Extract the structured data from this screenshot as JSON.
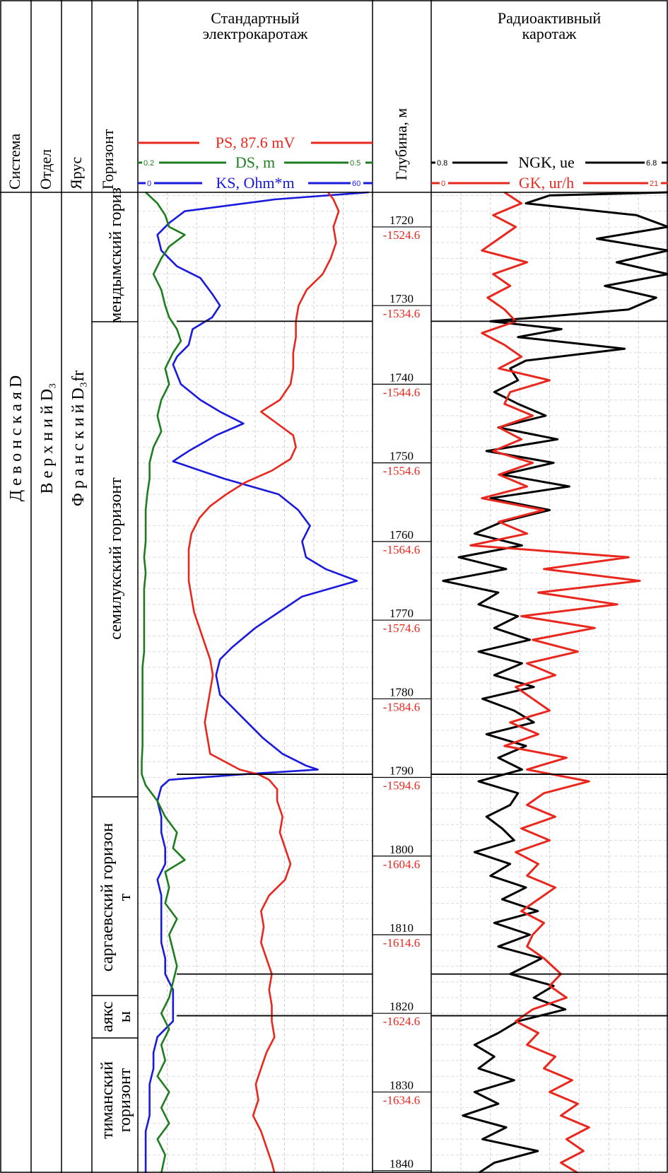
{
  "header": {
    "col_system": "Система",
    "col_department": "Отдел",
    "col_stage": "Ярус",
    "col_horizon": "Горизонт",
    "depth_label": "Глубина, м",
    "electro_title_1": "Стандартный",
    "electro_title_2": "электрокаротаж",
    "radio_title_1": "Радиоактивный",
    "radio_title_2": "каротаж"
  },
  "curves": {
    "ps": {
      "label": "PS, 87.6 mV",
      "color": "#e8281e"
    },
    "ds": {
      "label": "DS, m",
      "color": "#1e7d1e",
      "min": "0.2",
      "max": "0.5"
    },
    "ks": {
      "label": "KS, Ohm*m",
      "color": "#1a1adc",
      "min": "0",
      "max": "60"
    },
    "ngk": {
      "label": "NGK, ue",
      "color": "#000000",
      "min": "0.8",
      "max": "6.8"
    },
    "gk": {
      "label": "GK, ur/h",
      "color": "#e8281e",
      "min": "0",
      "max": "21"
    }
  },
  "stratigraphy": {
    "system": "Д е в о н с к а я  D",
    "department": "В е р х н и й  D₃",
    "stage": "Ф р а н с к и й  D₃fr",
    "horizons": [
      {
        "line1": "мендымский гориз",
        "line2": ""
      },
      {
        "line1": "семилукский горизонт",
        "line2": ""
      },
      {
        "line1": "саргаевский горизон",
        "line2": "т"
      },
      {
        "line1": "аякс",
        "line2": "ы"
      },
      {
        "line1": "тиманский",
        "line2": "горизонт"
      }
    ]
  },
  "depth_marks": [
    {
      "depth": "1720",
      "abs": "-1524.6"
    },
    {
      "depth": "1730",
      "abs": "-1534.6"
    },
    {
      "depth": "1740",
      "abs": "-1544.6"
    },
    {
      "depth": "1750",
      "abs": "-1554.6"
    },
    {
      "depth": "1760",
      "abs": "-1564.6"
    },
    {
      "depth": "1770",
      "abs": "-1574.6"
    },
    {
      "depth": "1780",
      "abs": "-1584.6"
    },
    {
      "depth": "1790",
      "abs": "-1594.6"
    },
    {
      "depth": "1800",
      "abs": "-1604.6"
    },
    {
      "depth": "1810",
      "abs": "-1614.6"
    },
    {
      "depth": "1820",
      "abs": "-1624.6"
    },
    {
      "depth": "1830",
      "abs": "-1634.6"
    },
    {
      "depth": "1840",
      "abs": ""
    }
  ],
  "chart_data": {
    "type": "line",
    "y_axis": "depth, m",
    "ylim": [
      1715.6,
      1840.3
    ],
    "boundaries": [
      1732.0,
      1789.6,
      1815.0,
      1820.3
    ],
    "series": [
      {
        "name": "KS, Ohm*m",
        "color": "#1a1adc",
        "xlim": [
          0,
          60
        ],
        "depth": [
          1715.6,
          1716.5,
          1718,
          1719.5,
          1721,
          1723,
          1725,
          1726.5,
          1728.5,
          1730,
          1731.5,
          1733,
          1735,
          1736.5,
          1737.5,
          1740,
          1742,
          1743.5,
          1745,
          1746.5,
          1748.5,
          1749.8,
          1752,
          1754,
          1756,
          1758,
          1760,
          1762,
          1763.5,
          1765,
          1767,
          1769,
          1771,
          1773.5,
          1775,
          1777,
          1779.5,
          1781.5,
          1783,
          1785,
          1787,
          1788.5,
          1789,
          1789.6,
          1790.3,
          1791.2,
          1793,
          1795,
          1797,
          1799,
          1801,
          1803,
          1805,
          1807,
          1809,
          1811,
          1813,
          1815,
          1817,
          1819,
          1821,
          1823,
          1825,
          1827,
          1829,
          1831,
          1833,
          1835,
          1837,
          1839,
          1840.3
        ],
        "values": [
          59,
          35,
          12,
          8,
          5,
          6,
          10,
          16,
          19,
          21,
          19,
          14,
          13,
          10,
          9,
          11,
          16,
          21,
          27,
          20,
          13,
          9,
          22,
          36,
          41,
          44,
          42,
          43,
          48,
          56,
          42,
          36,
          30,
          24,
          21,
          20,
          21,
          25,
          28,
          32,
          37,
          43,
          46,
          27,
          8,
          6,
          5,
          6,
          6,
          7,
          7,
          5,
          6,
          6,
          6,
          6,
          7,
          7,
          9,
          9,
          9,
          5,
          4,
          4,
          3,
          3,
          3,
          2,
          2,
          2,
          2
        ]
      },
      {
        "name": "PS, 87.6 mV",
        "color": "#e8281e",
        "xlim": [
          0,
          87.6
        ],
        "depth": [
          1715.6,
          1716.5,
          1718,
          1720,
          1722,
          1724,
          1726,
          1728,
          1730,
          1732,
          1734,
          1736,
          1738,
          1740,
          1742,
          1743.5,
          1745,
          1746.5,
          1748,
          1749.5,
          1751,
          1752.5,
          1754,
          1755.5,
          1757,
          1759,
          1761,
          1763,
          1765,
          1767,
          1769,
          1771,
          1773,
          1775,
          1777,
          1779,
          1781,
          1783,
          1785,
          1787,
          1789,
          1789.6,
          1790.3,
          1791.5,
          1793,
          1795,
          1797,
          1799,
          1801,
          1803,
          1805,
          1807,
          1809,
          1811,
          1813,
          1815,
          1817,
          1819,
          1821,
          1823,
          1825,
          1827,
          1829,
          1831,
          1833,
          1835,
          1837,
          1839,
          1840.3
        ],
        "values": [
          71,
          73,
          75,
          73,
          74,
          72,
          69,
          63,
          60,
          59,
          59,
          58,
          58,
          57,
          53,
          46,
          52,
          58,
          59,
          57,
          50,
          40,
          33,
          27,
          23,
          20,
          19,
          19,
          19,
          20,
          21,
          23,
          25,
          27,
          28,
          27,
          26,
          25,
          26,
          27,
          38,
          45,
          49,
          52,
          52,
          54,
          53,
          55,
          57,
          55,
          49,
          46,
          47,
          46,
          48,
          50,
          49,
          50,
          50,
          51,
          48,
          46,
          44,
          45,
          43,
          46,
          48,
          50,
          51
        ]
      },
      {
        "name": "DS, m",
        "color": "#1e7d1e",
        "xlim": [
          0.2,
          0.5
        ],
        "depth": [
          1715.6,
          1717,
          1718.5,
          1720,
          1721,
          1722.5,
          1724,
          1726,
          1728,
          1730,
          1731.5,
          1733,
          1734.5,
          1736,
          1738,
          1740,
          1742,
          1744,
          1746,
          1748,
          1750,
          1752,
          1754,
          1756,
          1758,
          1760,
          1762,
          1764,
          1766,
          1768,
          1770,
          1772,
          1774,
          1776,
          1778,
          1780,
          1782,
          1784,
          1786,
          1788,
          1789.6,
          1791,
          1793,
          1795,
          1797,
          1799,
          1800.5,
          1802,
          1804,
          1806,
          1808,
          1810,
          1812,
          1814,
          1816,
          1818,
          1820,
          1822,
          1824,
          1826,
          1828,
          1830,
          1832,
          1834,
          1836,
          1838,
          1840.3
        ],
        "values": [
          0.21,
          0.225,
          0.235,
          0.24,
          0.26,
          0.24,
          0.23,
          0.22,
          0.23,
          0.235,
          0.24,
          0.25,
          0.255,
          0.245,
          0.235,
          0.24,
          0.23,
          0.225,
          0.23,
          0.22,
          0.215,
          0.215,
          0.212,
          0.21,
          0.21,
          0.21,
          0.208,
          0.21,
          0.208,
          0.208,
          0.208,
          0.208,
          0.208,
          0.206,
          0.206,
          0.206,
          0.206,
          0.206,
          0.206,
          0.205,
          0.205,
          0.21,
          0.225,
          0.235,
          0.25,
          0.245,
          0.26,
          0.235,
          0.24,
          0.235,
          0.25,
          0.24,
          0.245,
          0.25,
          0.245,
          0.24,
          0.23,
          0.24,
          0.23,
          0.235,
          0.225,
          0.24,
          0.23,
          0.24,
          0.225,
          0.235,
          0.23
        ]
      },
      {
        "name": "NGK, ue",
        "color": "#000000",
        "xlim": [
          0.8,
          6.8
        ],
        "depth": [
          1715.6,
          1716,
          1717,
          1718.5,
          1720,
          1721.5,
          1723,
          1724.5,
          1726,
          1727.5,
          1729,
          1730.5,
          1732,
          1733,
          1734,
          1735.5,
          1737,
          1738,
          1739.5,
          1741,
          1742.5,
          1744,
          1745.5,
          1747,
          1748.5,
          1750,
          1751.5,
          1753,
          1754.5,
          1756,
          1757.5,
          1759,
          1760.5,
          1762,
          1763.5,
          1765,
          1766.5,
          1768,
          1769.5,
          1771,
          1772.5,
          1774,
          1775.5,
          1777,
          1778.5,
          1780,
          1781.5,
          1783,
          1784.5,
          1786,
          1787.5,
          1789,
          1790.5,
          1792,
          1793.5,
          1795,
          1796.5,
          1798,
          1799.5,
          1801,
          1802.5,
          1804,
          1805.5,
          1807,
          1808.5,
          1810,
          1811.5,
          1813,
          1815,
          1816.5,
          1818,
          1819.5,
          1821,
          1822.5,
          1824,
          1825.5,
          1827,
          1828.5,
          1830,
          1831.5,
          1833,
          1834.5,
          1836,
          1837.5,
          1839,
          1840.3
        ],
        "values": [
          6.8,
          3.8,
          3.2,
          6.0,
          6.8,
          5.0,
          6.8,
          5.5,
          6.8,
          5.2,
          6.5,
          5.8,
          2.3,
          4.1,
          3.0,
          5.7,
          3.2,
          2.8,
          3.0,
          2.4,
          3.0,
          3.7,
          2.5,
          4.0,
          2.2,
          3.9,
          2.6,
          4.3,
          2.3,
          3.8,
          2.6,
          1.9,
          3.1,
          1.5,
          2.7,
          1.1,
          2.5,
          2.0,
          3.0,
          2.4,
          3.3,
          2.0,
          3.1,
          2.4,
          3.4,
          2.1,
          2.9,
          3.4,
          2.2,
          3.2,
          2.5,
          3.1,
          2.0,
          3.0,
          2.8,
          2.2,
          2.6,
          2.9,
          1.9,
          2.8,
          2.3,
          3.2,
          2.6,
          3.5,
          2.4,
          3.3,
          2.5,
          3.6,
          2.8,
          3.9,
          3.4,
          4.2,
          3.0,
          2.5,
          1.9,
          2.4,
          2.0,
          2.9,
          1.9,
          2.5,
          1.6,
          2.7,
          2.1,
          3.5,
          2.4,
          2.0
        ]
      },
      {
        "name": "GK, ur/h",
        "color": "#e8281e",
        "xlim": [
          0,
          21
        ],
        "depth": [
          1715.6,
          1717,
          1718.5,
          1720,
          1721.5,
          1723,
          1724.5,
          1726,
          1727.5,
          1729,
          1730.5,
          1732,
          1733.5,
          1735,
          1736.5,
          1738,
          1739.5,
          1741,
          1742.5,
          1744,
          1745.5,
          1747,
          1748.5,
          1750,
          1751.5,
          1753,
          1754.5,
          1756,
          1757.5,
          1759,
          1760.5,
          1762,
          1763.5,
          1765,
          1766.5,
          1768,
          1769.5,
          1771,
          1772.5,
          1774,
          1775.5,
          1777,
          1778.5,
          1780,
          1781.5,
          1783,
          1784.5,
          1786,
          1787.5,
          1789,
          1790.5,
          1792,
          1793.5,
          1795,
          1796.5,
          1798,
          1799.5,
          1801,
          1802.5,
          1804,
          1805.5,
          1807,
          1808.5,
          1810,
          1811.5,
          1813,
          1815,
          1816.5,
          1818,
          1819.5,
          1821,
          1822.5,
          1824,
          1825.5,
          1827,
          1828.5,
          1830,
          1831.5,
          1833,
          1834.5,
          1836,
          1837.5,
          1839,
          1840.3
        ],
        "values": [
          6.5,
          8.0,
          5.5,
          7.5,
          6.0,
          4.5,
          8.5,
          5.5,
          7.0,
          5.0,
          6.5,
          7.5,
          4.5,
          6.5,
          8.0,
          6.0,
          10.5,
          7.0,
          6.5,
          9.0,
          6.0,
          8.0,
          5.5,
          9.0,
          6.0,
          8.5,
          4.5,
          10.0,
          6.0,
          8.5,
          3.5,
          17.5,
          10.0,
          18.5,
          9.5,
          16.5,
          8.0,
          14.5,
          9.0,
          13.0,
          8.5,
          11.0,
          7.5,
          9.0,
          10.5,
          7.0,
          9.5,
          6.5,
          12.0,
          8.5,
          14.0,
          10.0,
          8.5,
          11.0,
          8.0,
          10.5,
          7.5,
          9.5,
          8.5,
          11.0,
          9.5,
          8.0,
          10.0,
          9.0,
          8.5,
          10.0,
          11.5,
          10.5,
          12.0,
          9.0,
          7.5,
          9.5,
          8.5,
          11.0,
          10.0,
          12.5,
          10.5,
          13.0,
          11.5,
          14.0,
          12.0,
          13.5,
          11.5,
          13.0,
          12.0,
          11.5
        ]
      }
    ]
  }
}
